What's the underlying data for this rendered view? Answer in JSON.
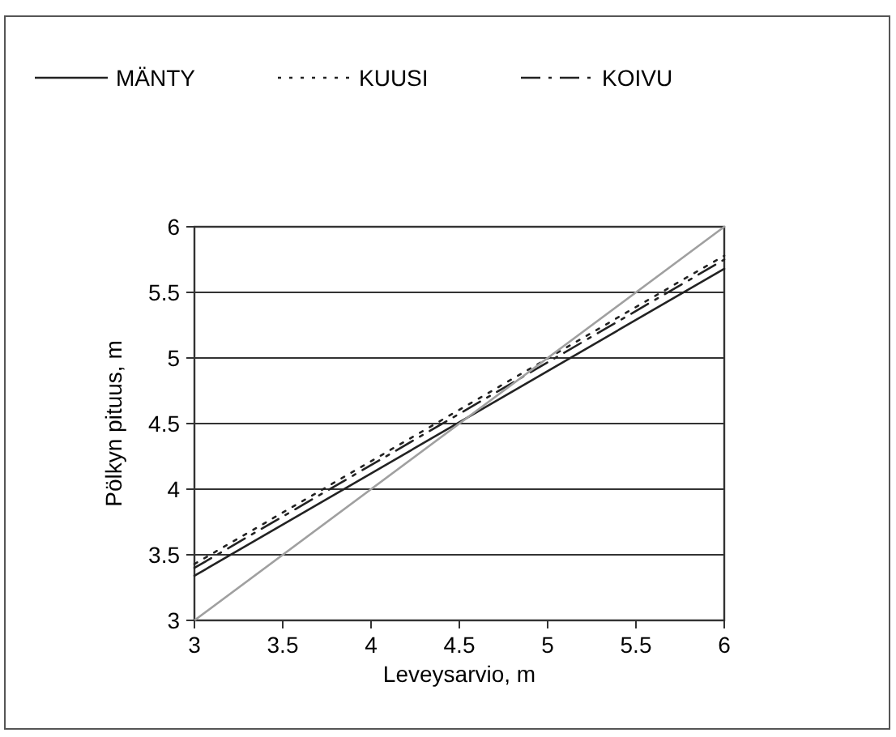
{
  "chart_data": {
    "type": "line",
    "xlabel": "Leveysarvio, m",
    "ylabel": "Pölkyn pituus, m",
    "x": [
      3,
      6
    ],
    "series": [
      {
        "name": "MÄNTY",
        "color": "#222222",
        "line_style": "solid",
        "values": [
          3.34,
          5.68
        ]
      },
      {
        "name": "KUUSI",
        "color": "#222222",
        "line_style": "dotted",
        "values": [
          3.43,
          5.78
        ]
      },
      {
        "name": "KOIVU",
        "color": "#222222",
        "line_style": "dashed",
        "values": [
          3.4,
          5.75
        ]
      },
      {
        "color": "#a0a0a0",
        "line_style": "solid",
        "values": [
          3,
          6
        ]
      }
    ],
    "xlim": [
      3,
      6
    ],
    "xticks": [
      3,
      3.5,
      4,
      4.5,
      5,
      5.5,
      6
    ],
    "ylim": [
      3,
      6
    ],
    "yticks": [
      3,
      3.5,
      4,
      4.5,
      5,
      5.5,
      6
    ],
    "grid": "y",
    "legend": "top",
    "marker": "none"
  }
}
